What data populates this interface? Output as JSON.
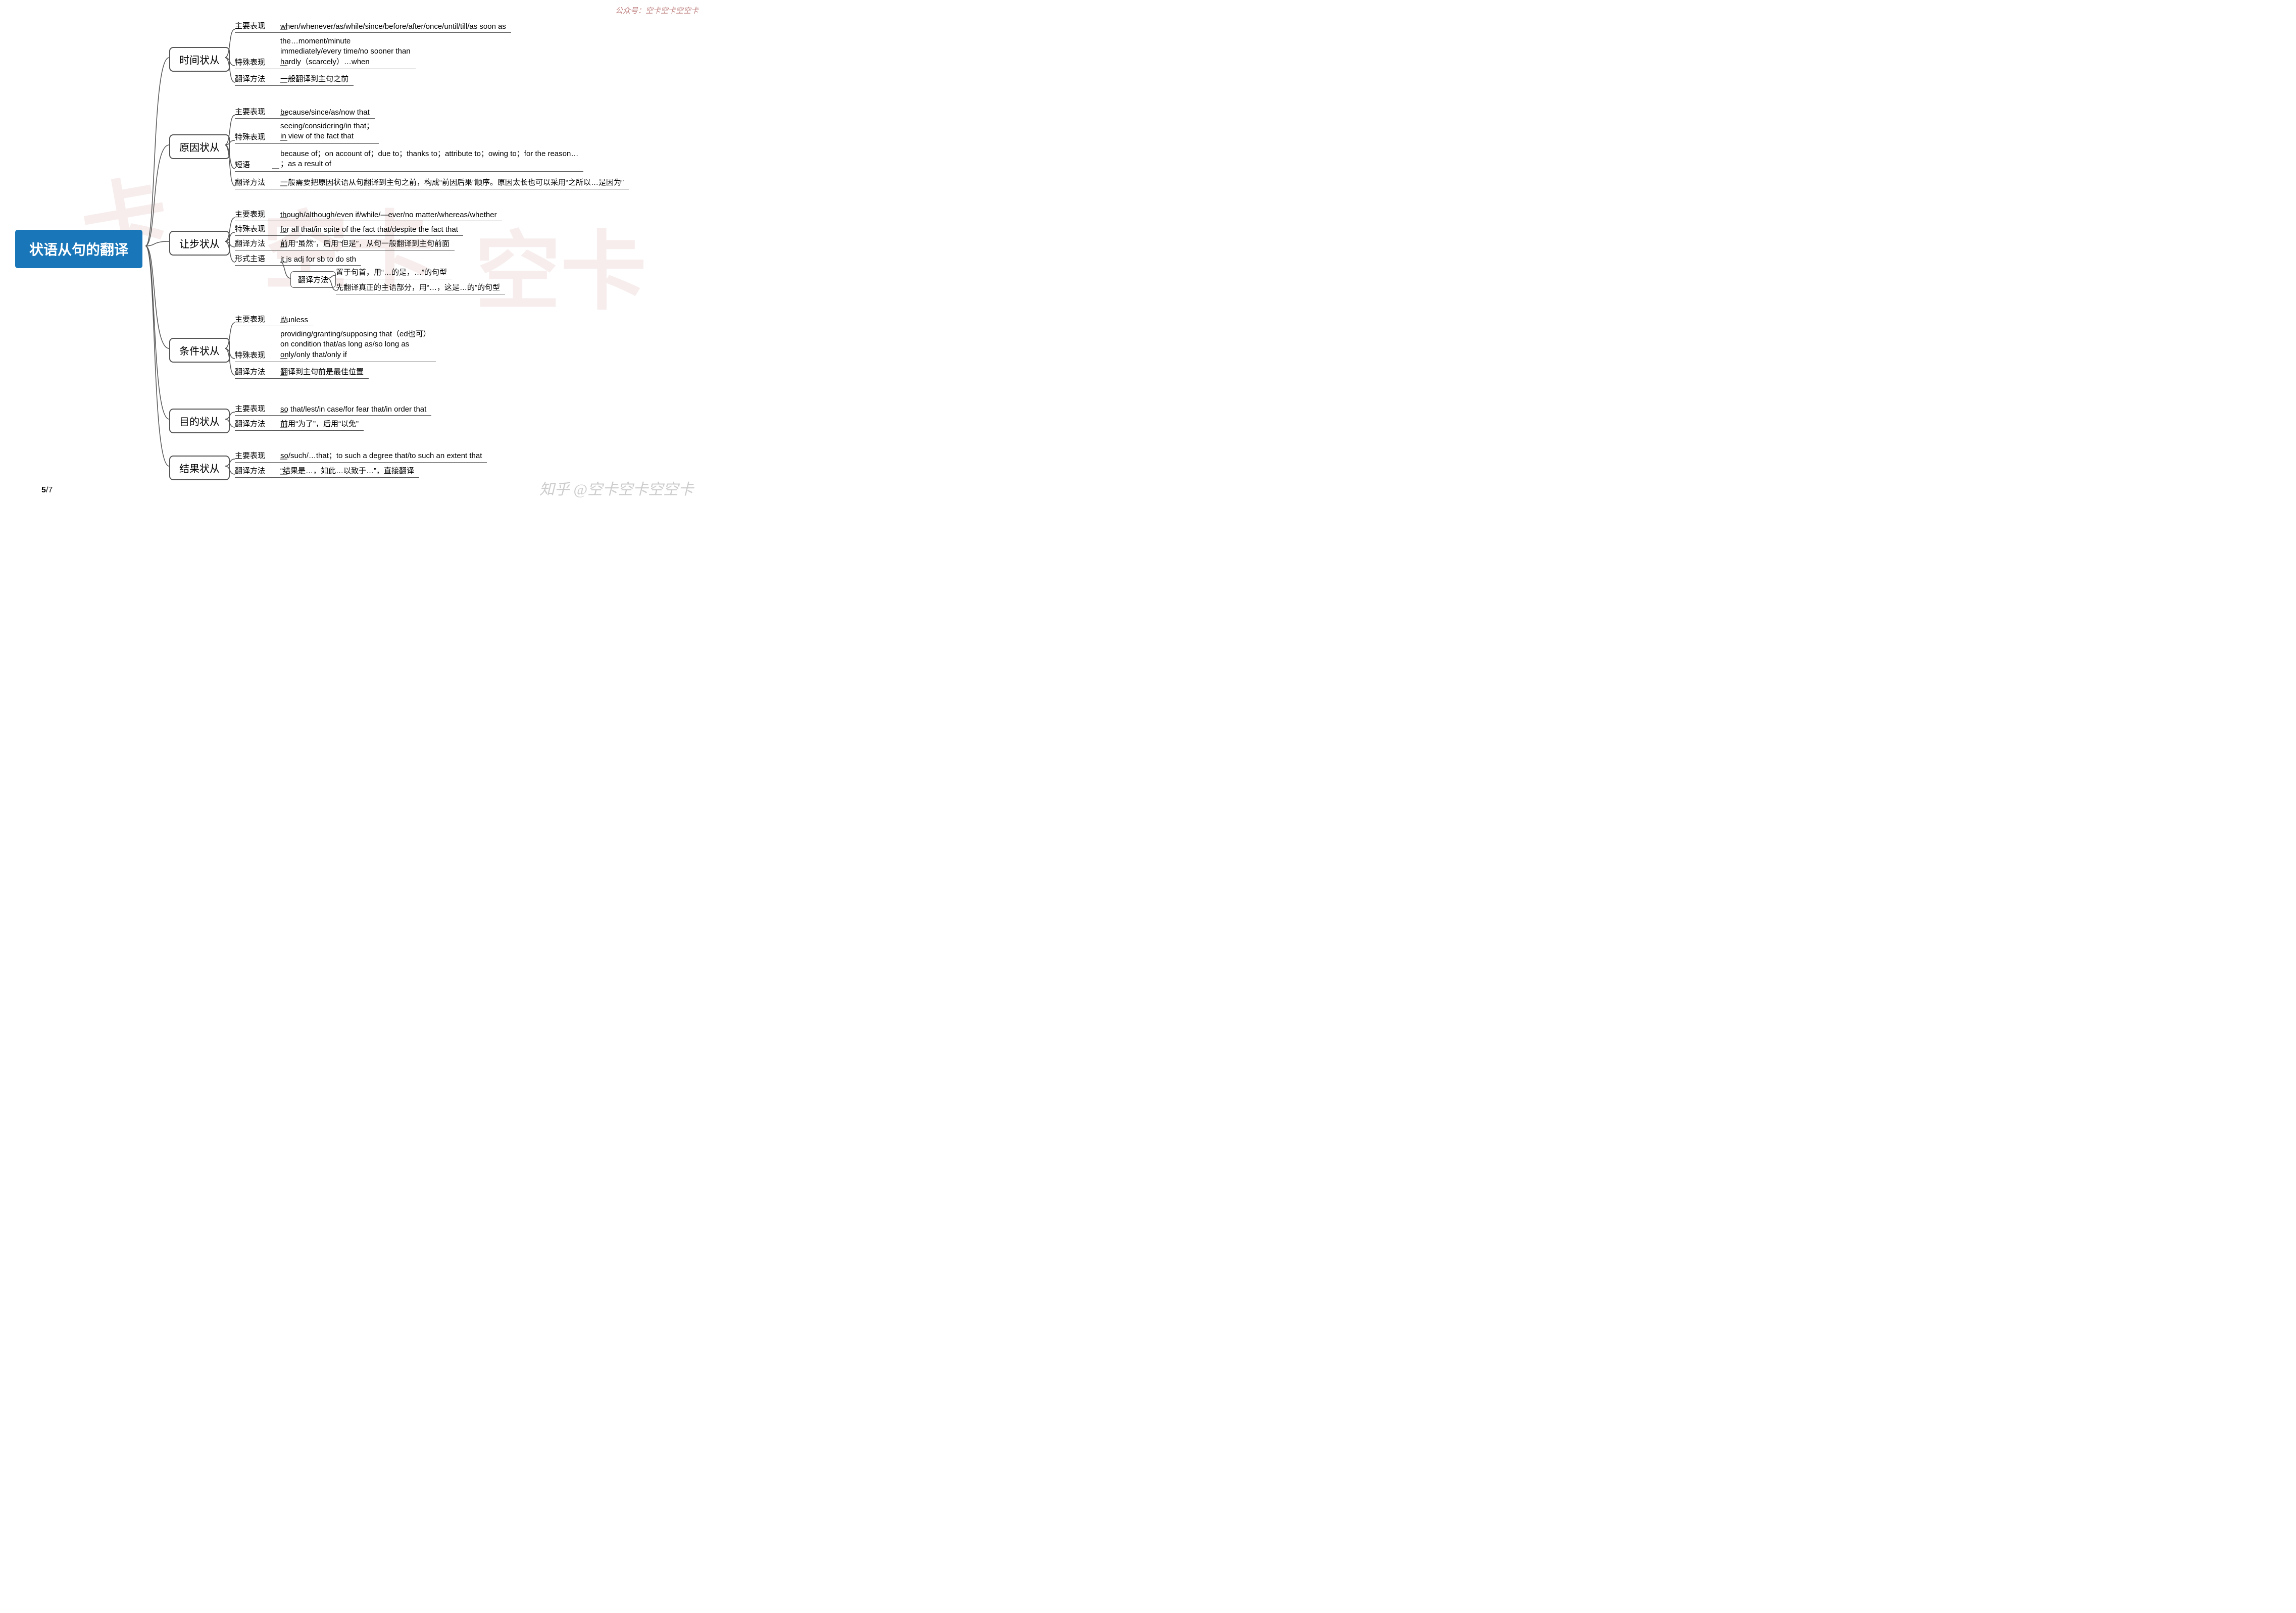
{
  "header_credit": "公众号：空卡空卡空空卡",
  "footer_page_current": "5",
  "footer_page_total": "/7",
  "footer_credit": "知乎 @空卡空卡空空卡",
  "root": "状语从句的翻译",
  "b1": {
    "title": "时间状从",
    "r1": {
      "label": "主要表现",
      "content": "when/whenever/as/while/since/before/after/once/until/till/as soon as"
    },
    "r2": {
      "label": "特殊表现",
      "content": "the…moment/minute\nimmediately/every time/no sooner than\nhardly（scarcely）…when"
    },
    "r3": {
      "label": "翻译方法",
      "content": "一般翻译到主句之前"
    }
  },
  "b2": {
    "title": "原因状从",
    "r1": {
      "label": "主要表现",
      "content": "because/since/as/now that"
    },
    "r2": {
      "label": "特殊表现",
      "content": "seeing/considering/in that；\nin view of the fact that"
    },
    "r3": {
      "label": "短语",
      "content": "because of；on account of；due to；thanks to；attribute to；owing to；for the reason…\n；as a result of"
    },
    "r4": {
      "label": "翻译方法",
      "content": "一般需要把原因状语从句翻译到主句之前，构成“前因后果”顺序。原因太长也可以采用“之所以…是因为”"
    }
  },
  "b3": {
    "title": "让步状从",
    "r1": {
      "label": "主要表现",
      "content": "though/although/even if/while/—ever/no matter/whereas/whether"
    },
    "r2": {
      "label": "特殊表现",
      "content": "for all that/in spite of the fact that/despite the fact that"
    },
    "r3": {
      "label": "翻译方法",
      "content": "前用“虽然”，后用“但是”，从句一般翻译到主句前面"
    },
    "r4": {
      "label": "形式主语",
      "content": "it is adj for sb to do sth"
    },
    "r4sub": {
      "label": "翻译方法",
      "c1": "置于句首，用“…的是，…”的句型",
      "c2": "先翻译真正的主语部分，用“…，这是…的”的句型"
    }
  },
  "b4": {
    "title": "条件状从",
    "r1": {
      "label": "主要表现",
      "content": "if/unless"
    },
    "r2": {
      "label": "特殊表现",
      "content": "providing/granting/supposing that（ed也可）\non condition that/as long as/so long as\nonly/only that/only if"
    },
    "r3": {
      "label": "翻译方法",
      "content": "翻译到主句前是最佳位置"
    }
  },
  "b5": {
    "title": "目的状从",
    "r1": {
      "label": "主要表现",
      "content": "so that/lest/in case/for fear that/in order that"
    },
    "r2": {
      "label": "翻译方法",
      "content": "前用“为了”，后用“以免”"
    }
  },
  "b6": {
    "title": "结果状从",
    "r1": {
      "label": "主要表现",
      "content": "so/such/…that；to such a degree that/to such an extent that"
    },
    "r2": {
      "label": "翻译方法",
      "content": "“结果是…，如此…以致于…”，直接翻译"
    }
  }
}
